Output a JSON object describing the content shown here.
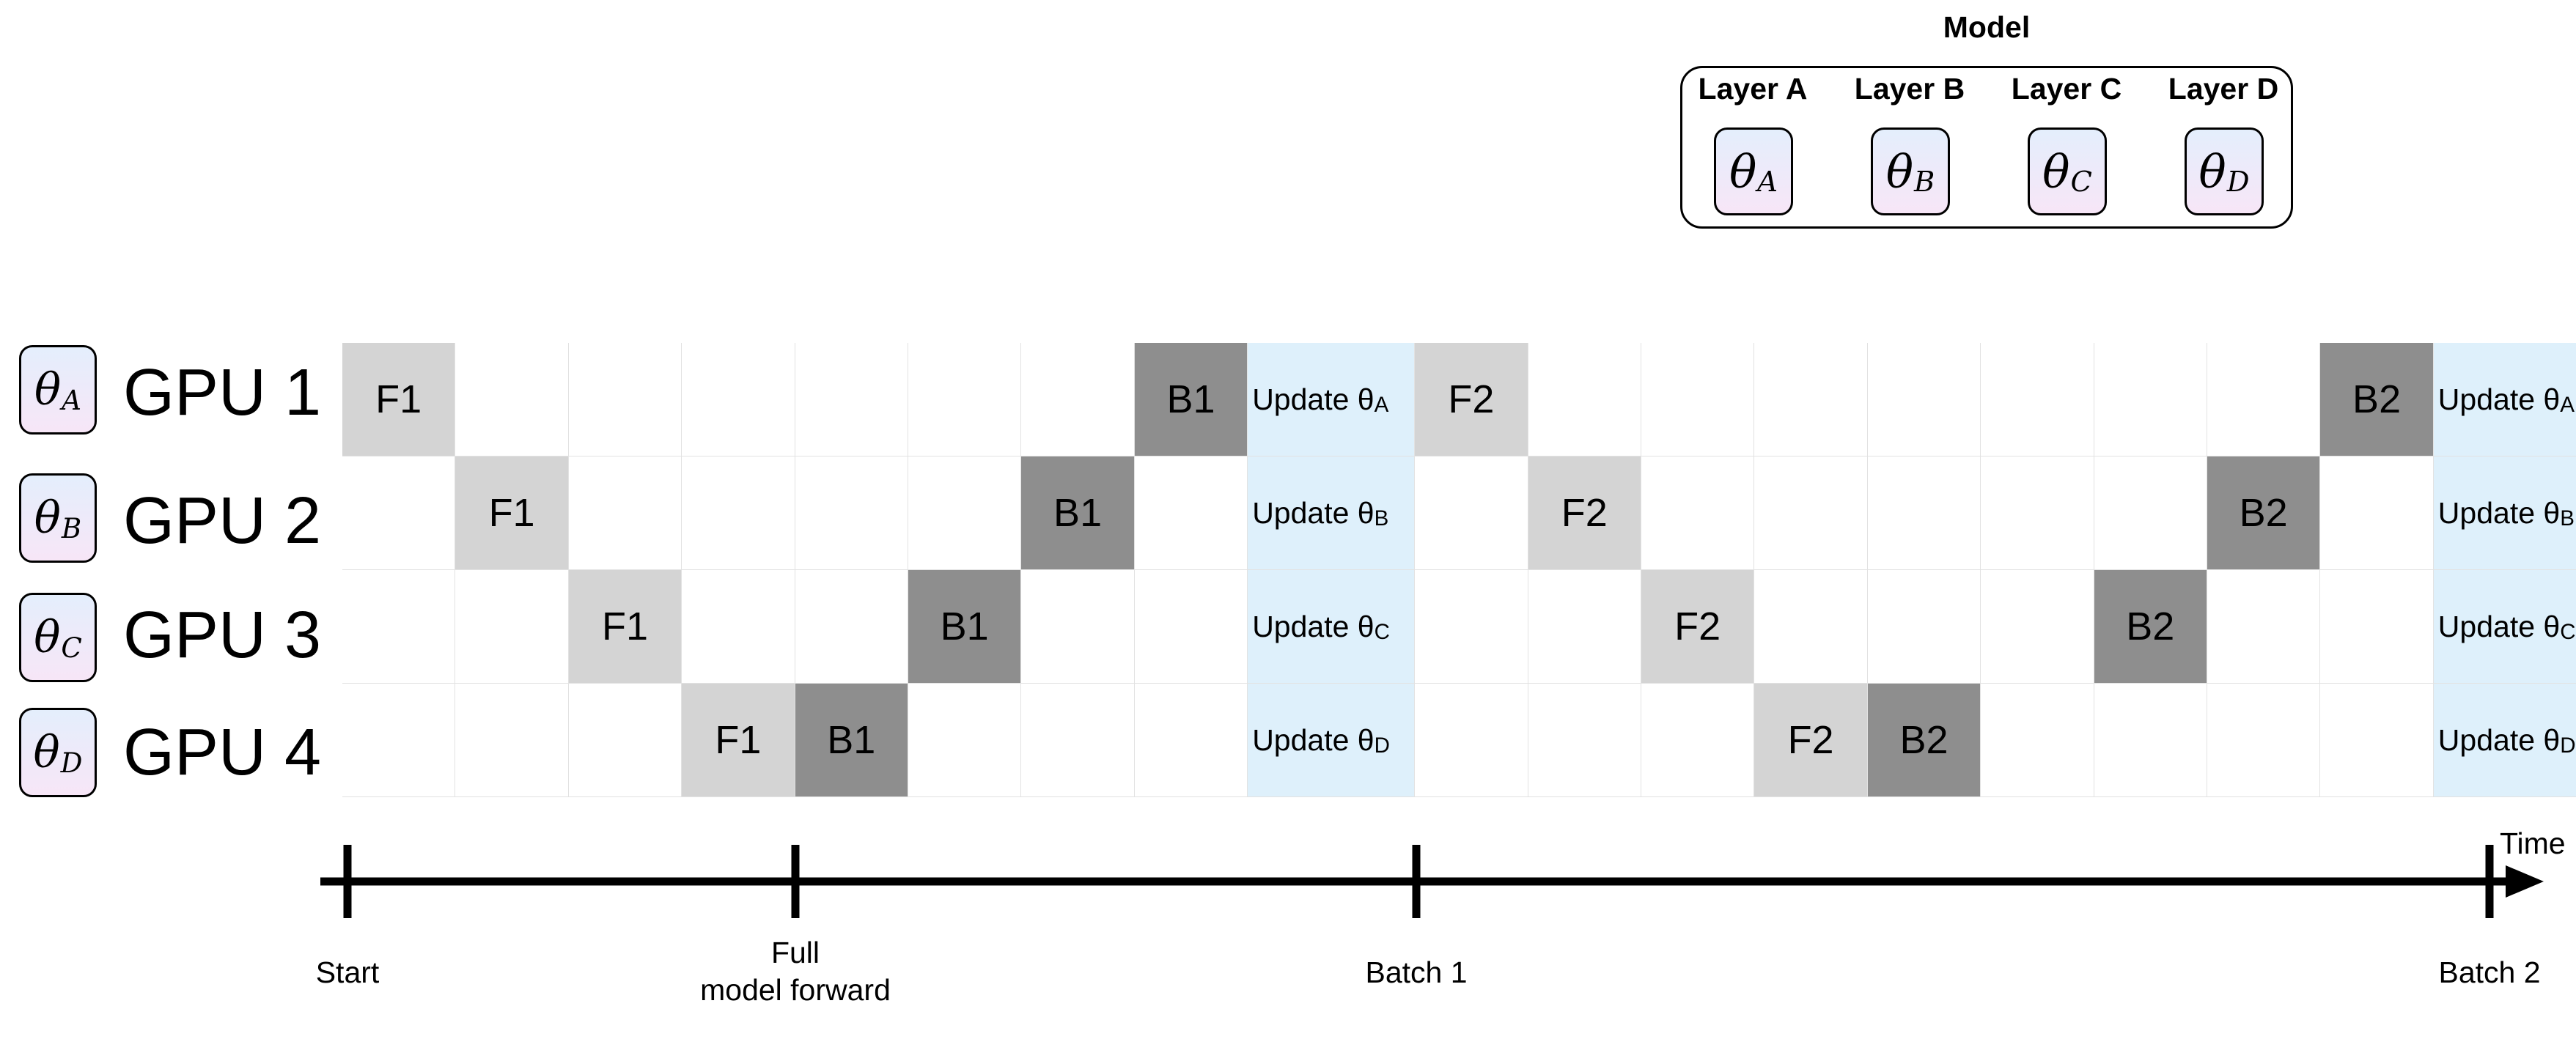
{
  "model": {
    "title": "Model",
    "layers": [
      {
        "label": "Layer A",
        "theta": "θ",
        "sub": "A"
      },
      {
        "label": "Layer B",
        "theta": "θ",
        "sub": "B"
      },
      {
        "label": "Layer C",
        "theta": "θ",
        "sub": "C"
      },
      {
        "label": "Layer D",
        "theta": "θ",
        "sub": "D"
      }
    ]
  },
  "gpus": [
    {
      "label": "GPU 1",
      "theta": "θ",
      "sub": "A"
    },
    {
      "label": "GPU 2",
      "theta": "θ",
      "sub": "B"
    },
    {
      "label": "GPU 3",
      "theta": "θ",
      "sub": "C"
    },
    {
      "label": "GPU 4",
      "theta": "θ",
      "sub": "D"
    }
  ],
  "schedule": {
    "columns": 19,
    "update_columns": [
      8,
      18
    ],
    "rows": [
      [
        {
          "col": 0,
          "kind": "F",
          "text": "F1"
        },
        {
          "col": 7,
          "kind": "B",
          "text": "B1"
        },
        {
          "col": 8,
          "kind": "U",
          "text": "Update θ",
          "sub": "A"
        },
        {
          "col": 9,
          "kind": "F",
          "text": "F2"
        },
        {
          "col": 17,
          "kind": "B",
          "text": "B2"
        },
        {
          "col": 18,
          "kind": "U",
          "text": "Update θ",
          "sub": "A"
        }
      ],
      [
        {
          "col": 1,
          "kind": "F",
          "text": "F1"
        },
        {
          "col": 6,
          "kind": "B",
          "text": "B1"
        },
        {
          "col": 8,
          "kind": "U",
          "text": "Update θ",
          "sub": "B"
        },
        {
          "col": 10,
          "kind": "F",
          "text": "F2"
        },
        {
          "col": 16,
          "kind": "B",
          "text": "B2"
        },
        {
          "col": 18,
          "kind": "U",
          "text": "Update θ",
          "sub": "B"
        }
      ],
      [
        {
          "col": 2,
          "kind": "F",
          "text": "F1"
        },
        {
          "col": 5,
          "kind": "B",
          "text": "B1"
        },
        {
          "col": 8,
          "kind": "U",
          "text": "Update θ",
          "sub": "C"
        },
        {
          "col": 11,
          "kind": "F",
          "text": "F2"
        },
        {
          "col": 15,
          "kind": "B",
          "text": "B2"
        },
        {
          "col": 18,
          "kind": "U",
          "text": "Update θ",
          "sub": "C"
        }
      ],
      [
        {
          "col": 3,
          "kind": "F",
          "text": "F1"
        },
        {
          "col": 4,
          "kind": "B",
          "text": "B1"
        },
        {
          "col": 8,
          "kind": "U",
          "text": "Update θ",
          "sub": "D"
        },
        {
          "col": 12,
          "kind": "F",
          "text": "F2"
        },
        {
          "col": 13,
          "kind": "B",
          "text": "B2"
        },
        {
          "col": 18,
          "kind": "U",
          "text": "Update θ",
          "sub": "D"
        }
      ]
    ]
  },
  "timeline": {
    "axis_label": "Time",
    "ticks": [
      {
        "key": "start",
        "text": "Start"
      },
      {
        "key": "full-forward",
        "text": "Full\nmodel forward"
      },
      {
        "key": "batch-1",
        "text": "Batch 1"
      },
      {
        "key": "batch-2",
        "text": "Batch 2"
      }
    ]
  },
  "colors": {
    "forward": "#d4d4d4",
    "backward": "#8e8e8e",
    "update": "#def0fb",
    "badge_top": "#e4eefc",
    "badge_bottom": "#f7e6f7",
    "gridline": "#e2e2e2"
  }
}
